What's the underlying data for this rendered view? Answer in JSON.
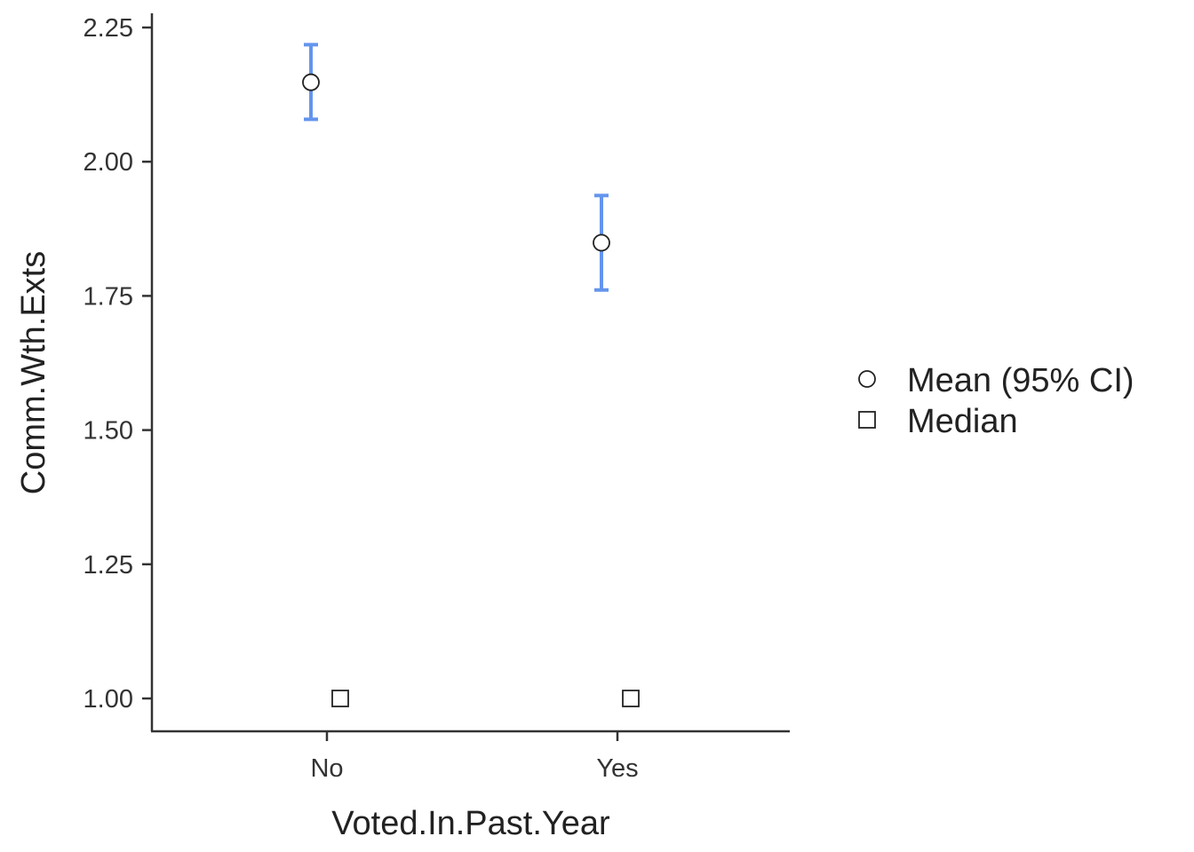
{
  "chart_data": {
    "type": "scatter",
    "xlabel": "Voted.In.Past.Year",
    "ylabel": "Comm.Wth.Exts",
    "categories": [
      "No",
      "Yes"
    ],
    "ylim": [
      0.94,
      2.275
    ],
    "yticks": [
      1.0,
      1.25,
      1.5,
      1.75,
      2.0,
      2.25
    ],
    "ytick_labels": [
      "1.00",
      "1.25",
      "1.50",
      "1.75",
      "2.00",
      "2.25"
    ],
    "grid": false,
    "legend_position": "right",
    "series": [
      {
        "name": "Mean (95% CI)",
        "marker": "circle",
        "values": [
          2.148,
          1.849
        ],
        "ci_lower": [
          2.079,
          1.761
        ],
        "ci_upper": [
          2.218,
          1.937
        ],
        "errorbar_color": "#6495ED"
      },
      {
        "name": "Median",
        "marker": "square",
        "values": [
          1.0,
          1.0
        ]
      }
    ]
  }
}
